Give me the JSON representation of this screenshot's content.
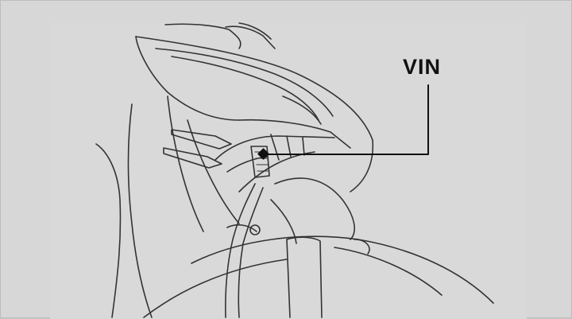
{
  "diagram": {
    "callout_label": "VIN",
    "colors": {
      "background": "#d7d7d7",
      "line": "#333333",
      "callout": "#111111"
    }
  }
}
